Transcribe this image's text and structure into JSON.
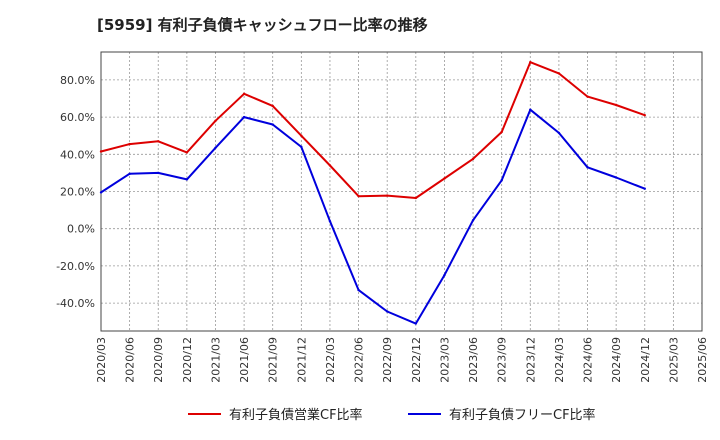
{
  "chart_data": {
    "type": "line",
    "title": "[5959]  有利子負債キャッシュフロー比率の推移",
    "xlabel": "",
    "ylabel": "",
    "ylim": [
      -55,
      95
    ],
    "yticks": [
      80,
      60,
      40,
      20,
      0,
      -20,
      -40
    ],
    "ytick_labels": [
      "80.0%",
      "60.0%",
      "40.0%",
      "20.0%",
      "0.0%",
      "-20.0%",
      "-40.0%"
    ],
    "xticks": [
      "2020/03",
      "2020/06",
      "2020/09",
      "2020/12",
      "2021/03",
      "2021/06",
      "2021/09",
      "2021/12",
      "2022/03",
      "2022/06",
      "2022/09",
      "2022/12",
      "2023/03",
      "2023/06",
      "2023/09",
      "2023/12",
      "2024/03",
      "2024/06",
      "2024/09",
      "2024/12",
      "2025/03",
      "2025/06"
    ],
    "grid": true,
    "legend_position": "bottom",
    "series": [
      {
        "name": "有利子負債営業CF比率",
        "color": "#dd0000",
        "x": [
          "2020/03",
          "2020/06",
          "2020/09",
          "2020/12",
          "2021/03",
          "2021/06",
          "2021/09",
          "2021/12",
          "2022/03",
          "2022/06",
          "2022/09",
          "2022/12",
          "2023/03",
          "2023/06",
          "2023/09",
          "2023/12",
          "2024/03",
          "2024/06",
          "2024/09",
          "2024/12"
        ],
        "values": [
          41.5,
          45.5,
          47,
          41,
          58,
          72.5,
          66,
          50,
          34,
          17.5,
          17.8,
          16.5,
          27,
          37.5,
          52,
          89.5,
          83.5,
          71,
          66.5,
          61
        ]
      },
      {
        "name": "有利子負債フリーCF比率",
        "color": "#0000dd",
        "x": [
          "2020/03",
          "2020/06",
          "2020/09",
          "2020/12",
          "2021/03",
          "2021/06",
          "2021/09",
          "2021/12",
          "2022/03",
          "2022/06",
          "2022/09",
          "2022/12",
          "2023/03",
          "2023/06",
          "2023/09",
          "2023/12",
          "2024/03",
          "2024/06",
          "2024/09",
          "2024/12"
        ],
        "values": [
          19.5,
          29.5,
          30,
          26.5,
          43.5,
          60,
          56,
          44,
          4,
          -33,
          -44.5,
          -51,
          -25,
          4.5,
          26,
          64,
          51.5,
          33,
          27.5,
          21.5
        ]
      }
    ]
  }
}
